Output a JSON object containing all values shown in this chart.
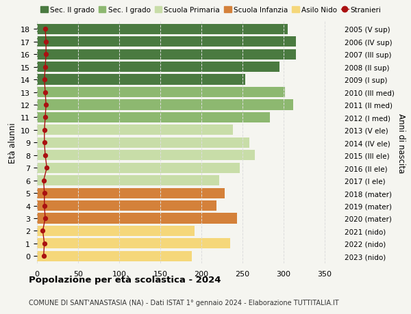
{
  "ages": [
    0,
    1,
    2,
    3,
    4,
    5,
    6,
    7,
    8,
    9,
    10,
    11,
    12,
    13,
    14,
    15,
    16,
    17,
    18
  ],
  "values": [
    188,
    235,
    192,
    243,
    218,
    228,
    222,
    247,
    265,
    258,
    238,
    283,
    312,
    302,
    253,
    295,
    315,
    315,
    305
  ],
  "stranieri": [
    8,
    9,
    7,
    10,
    9,
    9,
    8,
    12,
    10,
    9,
    9,
    10,
    11,
    10,
    9,
    10,
    11,
    11,
    10
  ],
  "right_labels": [
    "2023 (nido)",
    "2022 (nido)",
    "2021 (nido)",
    "2020 (mater)",
    "2019 (mater)",
    "2018 (mater)",
    "2017 (I ele)",
    "2016 (II ele)",
    "2015 (III ele)",
    "2014 (IV ele)",
    "2013 (V ele)",
    "2012 (I med)",
    "2011 (II med)",
    "2010 (III med)",
    "2009 (I sup)",
    "2008 (II sup)",
    "2007 (III sup)",
    "2006 (IV sup)",
    "2005 (V sup)"
  ],
  "bar_colors": [
    "#f5d77a",
    "#f5d77a",
    "#f5d77a",
    "#d4813a",
    "#d4813a",
    "#d4813a",
    "#c8dda8",
    "#c8dda8",
    "#c8dda8",
    "#c8dda8",
    "#c8dda8",
    "#8db870",
    "#8db870",
    "#8db870",
    "#4a7a40",
    "#4a7a40",
    "#4a7a40",
    "#4a7a40",
    "#4a7a40"
  ],
  "legend_labels": [
    "Sec. II grado",
    "Sec. I grado",
    "Scuola Primaria",
    "Scuola Infanzia",
    "Asilo Nido",
    "Stranieri"
  ],
  "legend_colors": [
    "#4a7a40",
    "#8db870",
    "#c8dda8",
    "#d4813a",
    "#f5d77a",
    "#a02020"
  ],
  "title": "Popolazione per età scolastica - 2024",
  "subtitle": "COMUNE DI SANT'ANASTASIA (NA) - Dati ISTAT 1° gennaio 2024 - Elaborazione TUTTITALIA.IT",
  "ylabel": "Età alunni",
  "right_ylabel": "Anni di nascita",
  "xlim": [
    0,
    370
  ],
  "xticks": [
    0,
    50,
    100,
    150,
    200,
    250,
    300,
    350
  ],
  "stranieri_color": "#aa1111",
  "background_color": "#f5f5f0",
  "grid_color": "#dddddd"
}
